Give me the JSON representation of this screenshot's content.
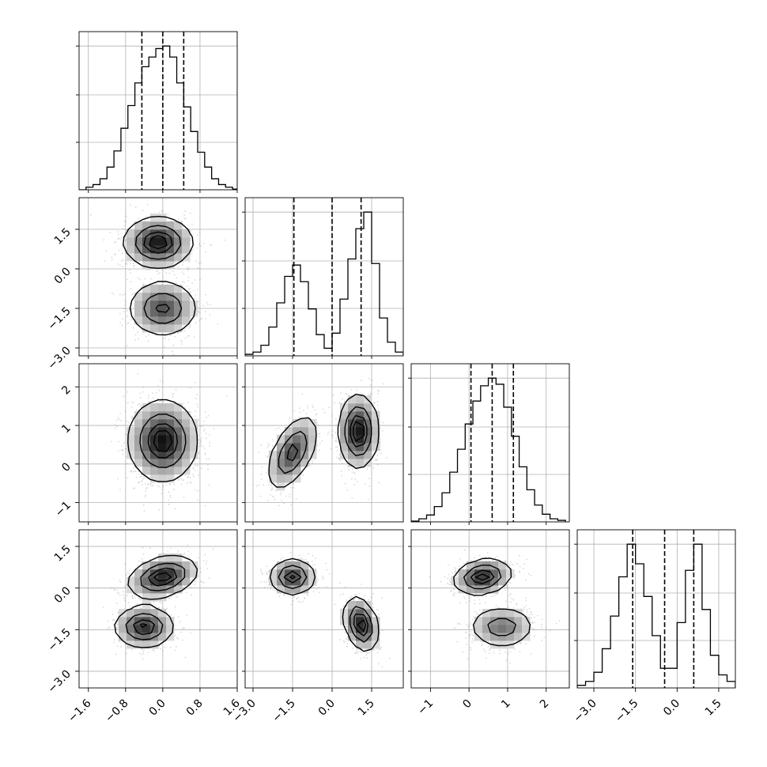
{
  "chart_data": {
    "type": "corner",
    "parameters": 4,
    "grid": true,
    "quantile_lines": "dashed",
    "params": [
      {
        "range": [
          -1.8,
          1.6
        ],
        "ticks": [
          -1.6,
          -0.8,
          0.0,
          0.8,
          1.6
        ],
        "tick_labels": [
          "−1.6",
          "−0.8",
          "0.0",
          "0.8",
          "1.6"
        ],
        "quantiles": [
          -0.45,
          0.0,
          0.45
        ],
        "histogram": {
          "bin_edges": [
            -1.8,
            -1.65,
            -1.5,
            -1.35,
            -1.2,
            -1.05,
            -0.9,
            -0.75,
            -0.6,
            -0.45,
            -0.3,
            -0.15,
            0.0,
            0.15,
            0.3,
            0.45,
            0.6,
            0.75,
            0.9,
            1.05,
            1.2,
            1.35,
            1.5,
            1.65
          ],
          "counts": [
            0,
            4,
            8,
            17,
            35,
            60,
            95,
            130,
            165,
            190,
            205,
            218,
            222,
            205,
            165,
            128,
            90,
            58,
            35,
            17,
            8,
            4,
            1
          ]
        }
      },
      {
        "range": [
          -3.3,
          2.7
        ],
        "ticks": [
          -3.0,
          -1.5,
          0.0,
          1.5
        ],
        "tick_labels": [
          "−3.0",
          "−1.5",
          "0.0",
          "1.5"
        ],
        "quantiles": [
          -1.45,
          0.0,
          1.1
        ],
        "histogram": {
          "bin_edges": [
            -3.3,
            -3.0,
            -2.7,
            -2.4,
            -2.1,
            -1.8,
            -1.5,
            -1.2,
            -0.9,
            -0.6,
            -0.3,
            0.0,
            0.3,
            0.6,
            0.9,
            1.2,
            1.5,
            1.8,
            2.1,
            2.4,
            2.7
          ],
          "counts": [
            2,
            5,
            14,
            38,
            70,
            105,
            120,
            98,
            62,
            28,
            10,
            30,
            75,
            128,
            168,
            190,
            122,
            50,
            18,
            5
          ]
        }
      },
      {
        "range": [
          -1.5,
          2.6
        ],
        "ticks": [
          -1,
          0,
          1,
          2
        ],
        "tick_labels": [
          "−1",
          "0",
          "1",
          "2"
        ],
        "quantiles": [
          0.05,
          0.6,
          1.15
        ],
        "histogram": {
          "bin_edges": [
            -1.5,
            -1.3,
            -1.1,
            -0.9,
            -0.7,
            -0.5,
            -0.3,
            -0.1,
            0.1,
            0.3,
            0.5,
            0.7,
            0.9,
            1.1,
            1.3,
            1.5,
            1.7,
            1.9,
            2.1,
            2.3,
            2.5
          ],
          "counts": [
            1,
            4,
            9,
            20,
            38,
            65,
            95,
            128,
            158,
            178,
            188,
            180,
            150,
            112,
            72,
            42,
            22,
            10,
            4,
            2
          ]
        }
      },
      {
        "range": [
          -3.6,
          2.1
        ],
        "ticks": [
          -3.0,
          -1.5,
          0.0,
          1.5
        ],
        "tick_labels": [
          "−3.0",
          "−1.5",
          "0.0",
          "1.5"
        ],
        "quantiles": [
          -1.6,
          -0.45,
          0.6
        ],
        "histogram": {
          "bin_edges": [
            -3.6,
            -3.3,
            -3.0,
            -2.7,
            -2.4,
            -2.1,
            -1.8,
            -1.5,
            -1.2,
            -0.9,
            -0.6,
            -0.3,
            0.0,
            0.3,
            0.6,
            0.9,
            1.2,
            1.5,
            1.8,
            2.1
          ],
          "counts": [
            2,
            5,
            12,
            30,
            55,
            85,
            110,
            95,
            70,
            40,
            15,
            15,
            50,
            90,
            110,
            60,
            25,
            10,
            5
          ]
        }
      }
    ],
    "pairs": [
      {
        "row": 1,
        "col": 0,
        "modes": [
          {
            "mx": -0.1,
            "my": 1.0,
            "sx": 0.35,
            "sy": 0.45,
            "rho": 0.0,
            "w": 0.55
          },
          {
            "mx": 0.0,
            "my": -1.5,
            "sx": 0.35,
            "sy": 0.5,
            "rho": 0.0,
            "w": 0.45
          }
        ]
      },
      {
        "row": 2,
        "col": 0,
        "modes": [
          {
            "mx": 0.0,
            "my": 0.6,
            "sx": 0.35,
            "sy": 0.5,
            "rho": 0.0,
            "w": 1.0
          }
        ]
      },
      {
        "row": 2,
        "col": 1,
        "modes": [
          {
            "mx": -1.5,
            "my": 0.3,
            "sx": 0.45,
            "sy": 0.45,
            "rho": 0.55,
            "w": 0.45
          },
          {
            "mx": 1.0,
            "my": 0.85,
            "sx": 0.35,
            "sy": 0.45,
            "rho": 0.0,
            "w": 0.55
          }
        ]
      },
      {
        "row": 3,
        "col": 0,
        "modes": [
          {
            "mx": 0.0,
            "my": 0.4,
            "sx": 0.35,
            "sy": 0.35,
            "rho": 0.3,
            "w": 0.55
          },
          {
            "mx": -0.4,
            "my": -1.4,
            "sx": 0.3,
            "sy": 0.35,
            "rho": 0.0,
            "w": 0.45
          }
        ]
      },
      {
        "row": 3,
        "col": 1,
        "modes": [
          {
            "mx": -1.5,
            "my": 0.4,
            "sx": 0.4,
            "sy": 0.3,
            "rho": 0.0,
            "w": 0.45
          },
          {
            "mx": 1.1,
            "my": -1.3,
            "sx": 0.3,
            "sy": 0.45,
            "rho": -0.3,
            "w": 0.55
          }
        ]
      },
      {
        "row": 3,
        "col": 2,
        "modes": [
          {
            "mx": 0.35,
            "my": 0.4,
            "sx": 0.35,
            "sy": 0.3,
            "rho": 0.2,
            "w": 0.55
          },
          {
            "mx": 0.85,
            "my": -1.4,
            "sx": 0.4,
            "sy": 0.35,
            "rho": 0.0,
            "w": 0.45
          }
        ]
      }
    ],
    "contour_levels": [
      0.11,
      0.39,
      0.68,
      0.86
    ]
  }
}
